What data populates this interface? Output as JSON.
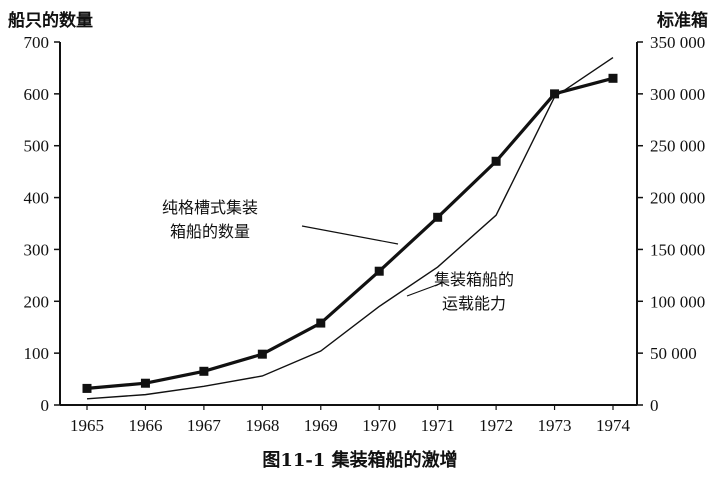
{
  "chart_data": {
    "type": "line",
    "title": "",
    "caption": "图11-1   集装箱船的激增",
    "y_left_label": "船只的数量",
    "y_right_label": "标准箱",
    "x": [
      "1965",
      "1966",
      "1967",
      "1968",
      "1969",
      "1970",
      "1971",
      "1972",
      "1973",
      "1974"
    ],
    "y_left_ticks": [
      "0",
      "100",
      "200",
      "300",
      "400",
      "500",
      "600",
      "700"
    ],
    "y_right_ticks": [
      "0",
      "50 000",
      "100 000",
      "150 000",
      "200 000",
      "250 000",
      "300 000",
      "350 000"
    ],
    "ylim_left": [
      0,
      700
    ],
    "ylim_right": [
      0,
      350000
    ],
    "grid": false,
    "series": [
      {
        "name": "纯格槽式集装箱船的数量",
        "label_lines": [
          "纯格槽式集装",
          "箱船的数量"
        ],
        "axis": "left",
        "style": "thick line with square markers",
        "values": [
          32,
          42,
          65,
          98,
          158,
          258,
          362,
          470,
          600,
          630
        ]
      },
      {
        "name": "集装箱船的运载能力",
        "label_lines": [
          "集装箱船的",
          "运载能力"
        ],
        "axis": "right",
        "style": "thin line",
        "values": [
          6000,
          10000,
          18000,
          28000,
          52000,
          95000,
          133000,
          183000,
          297000,
          335000
        ]
      }
    ]
  }
}
